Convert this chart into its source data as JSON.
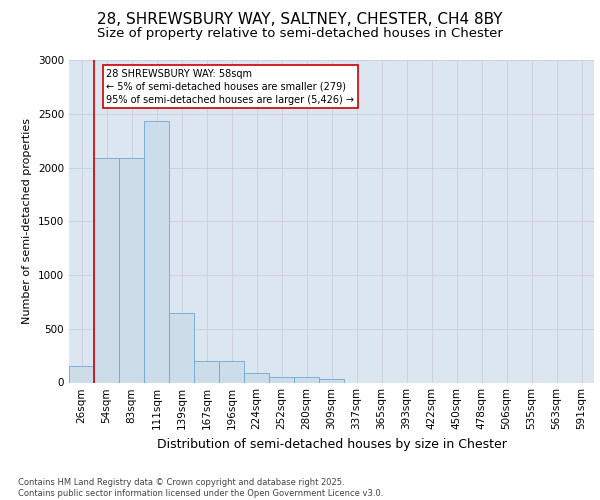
{
  "title_line1": "28, SHREWSBURY WAY, SALTNEY, CHESTER, CH4 8BY",
  "title_line2": "Size of property relative to semi-detached houses in Chester",
  "xlabel": "Distribution of semi-detached houses by size in Chester",
  "ylabel": "Number of semi-detached properties",
  "categories": [
    "26sqm",
    "54sqm",
    "83sqm",
    "111sqm",
    "139sqm",
    "167sqm",
    "196sqm",
    "224sqm",
    "252sqm",
    "280sqm",
    "309sqm",
    "337sqm",
    "365sqm",
    "393sqm",
    "422sqm",
    "450sqm",
    "478sqm",
    "506sqm",
    "535sqm",
    "563sqm",
    "591sqm"
  ],
  "values": [
    155,
    2090,
    2090,
    2430,
    650,
    200,
    200,
    85,
    50,
    50,
    30,
    0,
    0,
    0,
    0,
    0,
    0,
    0,
    0,
    0,
    0
  ],
  "bar_color": "#ccdce8",
  "bar_edge_color": "#6aaad4",
  "grid_color": "#c8cfd8",
  "background_color": "#dce6f0",
  "vline_color": "#cc0000",
  "vline_x_index": 1,
  "annotation_text": "28 SHREWSBURY WAY: 58sqm\n← 5% of semi-detached houses are smaller (279)\n95% of semi-detached houses are larger (5,426) →",
  "annotation_box_facecolor": "#ffffff",
  "annotation_box_edgecolor": "#cc0000",
  "ylim": [
    0,
    3000
  ],
  "yticks": [
    0,
    500,
    1000,
    1500,
    2000,
    2500,
    3000
  ],
  "footnote": "Contains HM Land Registry data © Crown copyright and database right 2025.\nContains public sector information licensed under the Open Government Licence v3.0.",
  "title_fontsize": 11,
  "subtitle_fontsize": 9.5,
  "ylabel_fontsize": 8,
  "xlabel_fontsize": 9,
  "tick_fontsize": 7.5,
  "annot_fontsize": 7,
  "footnote_fontsize": 6
}
